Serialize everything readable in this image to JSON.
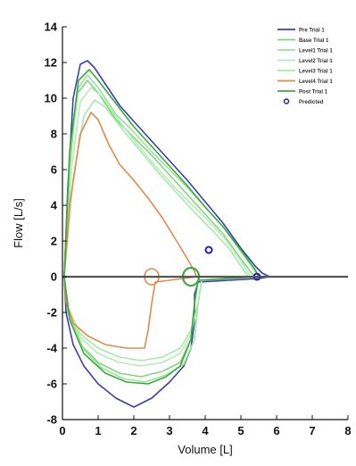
{
  "chart_data": {
    "type": "line",
    "title": "",
    "xlabel": "Volume [L]",
    "ylabel": "Flow [L/s]",
    "xlim": [
      0,
      8
    ],
    "ylim": [
      -8,
      14
    ],
    "xticks": [
      "0",
      "1",
      "2",
      "3",
      "4",
      "5",
      "6",
      "7",
      "8"
    ],
    "yticks": [
      "14",
      "12",
      "10",
      "8",
      "6",
      "4",
      "2",
      "0",
      "-2",
      "-4",
      "-6",
      "-8"
    ],
    "grid": false,
    "legend_position": "top-right",
    "series": [
      {
        "name": "Pre Trial 1",
        "color": "#3a3fb0",
        "points": [
          [
            0.05,
            0
          ],
          [
            0.15,
            5
          ],
          [
            0.3,
            10
          ],
          [
            0.5,
            11.9
          ],
          [
            0.7,
            12.1
          ],
          [
            0.9,
            11.7
          ],
          [
            1.2,
            10.8
          ],
          [
            1.6,
            9.6
          ],
          [
            2.0,
            8.7
          ],
          [
            2.5,
            7.6
          ],
          [
            3.0,
            6.5
          ],
          [
            3.5,
            5.4
          ],
          [
            4.0,
            4.2
          ],
          [
            4.5,
            3.0
          ],
          [
            5.0,
            1.6
          ],
          [
            5.4,
            0.6
          ],
          [
            5.6,
            0.2
          ],
          [
            5.8,
            0
          ],
          [
            5.5,
            -0.1
          ],
          [
            3.8,
            -0.3
          ],
          [
            3.7,
            -1
          ],
          [
            3.7,
            -2.5
          ],
          [
            3.6,
            -4
          ],
          [
            3.4,
            -5
          ],
          [
            3.0,
            -5.9
          ],
          [
            2.5,
            -6.8
          ],
          [
            2.0,
            -7.3
          ],
          [
            1.5,
            -6.8
          ],
          [
            1.0,
            -6.0
          ],
          [
            0.6,
            -5.0
          ],
          [
            0.3,
            -3.8
          ],
          [
            0.1,
            -2
          ],
          [
            0.05,
            0
          ]
        ]
      },
      {
        "name": "Base Trial 1",
        "color": "#7fd67f",
        "points": [
          [
            0.05,
            0
          ],
          [
            0.2,
            6
          ],
          [
            0.4,
            10.2
          ],
          [
            0.7,
            11.0
          ],
          [
            1.0,
            10.3
          ],
          [
            1.5,
            8.8
          ],
          [
            2.0,
            7.8
          ],
          [
            2.5,
            6.8
          ],
          [
            3.0,
            5.7
          ],
          [
            3.5,
            4.6
          ],
          [
            4.0,
            3.5
          ],
          [
            4.5,
            2.4
          ],
          [
            5.0,
            1.0
          ],
          [
            5.3,
            0.2
          ],
          [
            5.4,
            0
          ],
          [
            3.8,
            -0.2
          ],
          [
            3.7,
            -1.5
          ],
          [
            3.6,
            -3.5
          ],
          [
            3.3,
            -4.8
          ],
          [
            2.8,
            -5.3
          ],
          [
            2.2,
            -5.6
          ],
          [
            1.6,
            -5.4
          ],
          [
            1.0,
            -4.8
          ],
          [
            0.5,
            -3.8
          ],
          [
            0.15,
            -2
          ],
          [
            0.05,
            0
          ]
        ]
      },
      {
        "name": "Level1 Trial 1",
        "color": "#9be39b",
        "points": [
          [
            0.05,
            0
          ],
          [
            0.2,
            6.5
          ],
          [
            0.45,
            10.6
          ],
          [
            0.7,
            11.3
          ],
          [
            1.0,
            10.6
          ],
          [
            1.5,
            9.1
          ],
          [
            2.0,
            8.1
          ],
          [
            2.5,
            7.0
          ],
          [
            3.0,
            6.0
          ],
          [
            3.5,
            5.0
          ],
          [
            4.0,
            3.9
          ],
          [
            4.5,
            2.8
          ],
          [
            5.0,
            1.4
          ],
          [
            5.4,
            0.3
          ],
          [
            5.5,
            0
          ],
          [
            3.9,
            -0.2
          ],
          [
            3.8,
            -1.5
          ],
          [
            3.7,
            -3.5
          ],
          [
            3.4,
            -4.9
          ],
          [
            2.9,
            -5.5
          ],
          [
            2.3,
            -5.9
          ],
          [
            1.7,
            -5.7
          ],
          [
            1.1,
            -5.1
          ],
          [
            0.6,
            -4.1
          ],
          [
            0.2,
            -2.2
          ],
          [
            0.05,
            0
          ]
        ]
      },
      {
        "name": "Level2 Trial 1",
        "color": "#b5ebb5",
        "points": [
          [
            0.05,
            0
          ],
          [
            0.25,
            6
          ],
          [
            0.5,
            9.8
          ],
          [
            0.8,
            10.6
          ],
          [
            1.1,
            10.1
          ],
          [
            1.6,
            8.7
          ],
          [
            2.1,
            7.4
          ],
          [
            2.6,
            6.2
          ],
          [
            3.1,
            5.1
          ],
          [
            3.6,
            4.1
          ],
          [
            4.1,
            3.1
          ],
          [
            4.6,
            2.0
          ],
          [
            5.0,
            0.9
          ],
          [
            5.2,
            0.2
          ],
          [
            5.3,
            0
          ],
          [
            3.9,
            -0.2
          ],
          [
            3.8,
            -1.5
          ],
          [
            3.6,
            -3.2
          ],
          [
            3.3,
            -4.3
          ],
          [
            2.8,
            -4.8
          ],
          [
            2.2,
            -5.0
          ],
          [
            1.6,
            -4.8
          ],
          [
            1.0,
            -4.3
          ],
          [
            0.5,
            -3.4
          ],
          [
            0.15,
            -1.8
          ],
          [
            0.05,
            0
          ]
        ]
      },
      {
        "name": "Level3 Trial 1",
        "color": "#a8e8a8",
        "points": [
          [
            0.05,
            0
          ],
          [
            0.3,
            5.5
          ],
          [
            0.6,
            9.0
          ],
          [
            0.9,
            9.9
          ],
          [
            1.2,
            9.5
          ],
          [
            1.7,
            8.2
          ],
          [
            2.2,
            7.0
          ],
          [
            2.7,
            5.8
          ],
          [
            3.2,
            4.7
          ],
          [
            3.7,
            3.6
          ],
          [
            4.2,
            2.6
          ],
          [
            4.7,
            1.5
          ],
          [
            5.0,
            0.6
          ],
          [
            5.2,
            0
          ],
          [
            3.9,
            -0.2
          ],
          [
            3.8,
            -1.5
          ],
          [
            3.6,
            -3.0
          ],
          [
            3.3,
            -4.0
          ],
          [
            2.8,
            -4.5
          ],
          [
            2.2,
            -4.7
          ],
          [
            1.6,
            -4.5
          ],
          [
            1.0,
            -4.0
          ],
          [
            0.5,
            -3.2
          ],
          [
            0.15,
            -1.7
          ],
          [
            0.05,
            0
          ]
        ]
      },
      {
        "name": "Level4 Trial 1",
        "color": "#e38a4a",
        "points": [
          [
            0.05,
            0
          ],
          [
            0.2,
            4
          ],
          [
            0.5,
            8.0
          ],
          [
            0.8,
            9.2
          ],
          [
            1.0,
            8.8
          ],
          [
            1.3,
            7.4
          ],
          [
            1.6,
            6.3
          ],
          [
            2.0,
            5.4
          ],
          [
            2.4,
            4.4
          ],
          [
            2.8,
            3.3
          ],
          [
            3.2,
            2.0
          ],
          [
            3.5,
            1.0
          ],
          [
            3.7,
            0.3
          ],
          [
            3.75,
            0
          ],
          [
            2.6,
            -0.3
          ],
          [
            2.5,
            -1.5
          ],
          [
            2.4,
            -3.0
          ],
          [
            2.3,
            -4.0
          ],
          [
            1.8,
            -4.0
          ],
          [
            1.2,
            -3.8
          ],
          [
            0.7,
            -3.3
          ],
          [
            0.3,
            -2.6
          ],
          [
            0.1,
            -1.4
          ],
          [
            0.05,
            0
          ]
        ]
      },
      {
        "name": "Post Trial 1",
        "color": "#3aaa3a",
        "points": [
          [
            0.05,
            0
          ],
          [
            0.2,
            7
          ],
          [
            0.45,
            11.0
          ],
          [
            0.75,
            11.6
          ],
          [
            1.0,
            11.0
          ],
          [
            1.5,
            9.7
          ],
          [
            2.0,
            8.4
          ],
          [
            2.5,
            7.3
          ],
          [
            3.0,
            6.2
          ],
          [
            3.5,
            5.1
          ],
          [
            4.0,
            3.9
          ],
          [
            4.5,
            2.8
          ],
          [
            5.0,
            1.5
          ],
          [
            5.4,
            0.4
          ],
          [
            5.5,
            0
          ],
          [
            3.8,
            -0.2
          ],
          [
            3.7,
            -1.5
          ],
          [
            3.6,
            -3.5
          ],
          [
            3.3,
            -5.0
          ],
          [
            2.9,
            -5.6
          ],
          [
            2.4,
            -6.0
          ],
          [
            1.8,
            -5.9
          ],
          [
            1.2,
            -5.4
          ],
          [
            0.6,
            -4.3
          ],
          [
            0.2,
            -2.4
          ],
          [
            0.05,
            0
          ]
        ]
      }
    ],
    "predicted": {
      "name": "Predicted",
      "color": "#1f1fa8",
      "points": [
        [
          4.1,
          1.5
        ],
        [
          5.45,
          0
        ]
      ]
    }
  }
}
